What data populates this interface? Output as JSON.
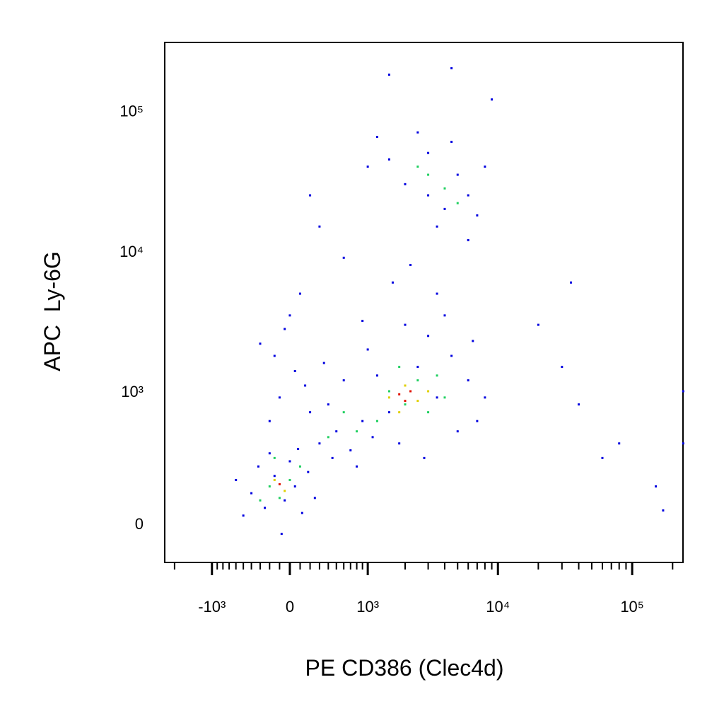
{
  "chart_data": {
    "type": "scatter",
    "xlabel": "PE CD386 (Clec4d)",
    "ylabel": "APC  Ly-6G",
    "xscale": "biexponential",
    "yscale": "biexponential",
    "xlim": [
      -2380,
      239000
    ],
    "ylim": [
      -159,
      305000
    ],
    "xticks": [
      {
        "value": -1000,
        "label": "-10³"
      },
      0,
      {
        "value": 1000,
        "label": "10³"
      },
      {
        "value": 10000,
        "label": "10⁴"
      },
      {
        "value": 100000,
        "label": "10⁵"
      }
    ],
    "xminor_ticks": [
      -2000,
      -900,
      -800,
      -700,
      -600,
      -500,
      -400,
      -300,
      -200,
      -100,
      100,
      200,
      300,
      400,
      500,
      600,
      700,
      800,
      900,
      2000,
      3000,
      4000,
      5000,
      6000,
      7000,
      8000,
      9000,
      20000,
      30000,
      40000,
      50000,
      60000,
      70000,
      80000,
      90000,
      200000
    ],
    "yticks": [
      0,
      {
        "value": 1000,
        "label": "10³"
      },
      {
        "value": 10000,
        "label": "10⁴"
      },
      {
        "value": 100000,
        "label": "10⁵"
      }
    ],
    "series": [
      {
        "color": "#0000e0",
        "x": [
          -400,
          -250,
          -150,
          -50,
          50,
          120,
          -320,
          -200,
          0,
          180,
          -500,
          -80,
          250,
          -600,
          80,
          -200,
          -100,
          50,
          -300,
          0,
          100,
          -150,
          200,
          -50,
          150,
          300,
          500,
          400,
          700,
          900,
          600,
          350,
          800,
          1100,
          450,
          1500,
          2500,
          3500,
          1000,
          4500,
          6000,
          2000,
          3000,
          7000,
          1200,
          5000,
          8000,
          1800,
          4000,
          2800,
          3500,
          1600,
          6500,
          900,
          2200,
          2000,
          3000,
          4000,
          5000,
          6000,
          3500,
          1500,
          7000,
          2500,
          4500,
          1000,
          6000,
          3000,
          8000,
          1200,
          300,
          600,
          200,
          1500,
          4500,
          9000,
          20000,
          30000,
          40000,
          60000,
          80000,
          150000,
          170000,
          240000,
          240000,
          35000
        ],
        "values": [
          120,
          60,
          200,
          90,
          150,
          40,
          250,
          330,
          280,
          220,
          30,
          -40,
          100,
          180,
          360,
          600,
          900,
          1400,
          2200,
          3500,
          5000,
          1800,
          700,
          2800,
          1100,
          400,
          500,
          800,
          350,
          600,
          1200,
          1600,
          250,
          450,
          300,
          700,
          1500,
          900,
          2000,
          1800,
          1200,
          3000,
          2500,
          600,
          1300,
          500,
          900,
          400,
          3500,
          300,
          5000,
          6000,
          2300,
          3200,
          8000,
          30000,
          50000,
          20000,
          35000,
          25000,
          15000,
          45000,
          18000,
          70000,
          60000,
          40000,
          12000,
          25000,
          40000,
          65000,
          15000,
          9000,
          25000,
          180000,
          200000,
          120000,
          3000,
          1500,
          800,
          300,
          400,
          150,
          50,
          1000,
          400,
          6000
        ]
      },
      {
        "color": "#20d060",
        "x": [
          -200,
          -100,
          0,
          -300,
          100,
          -150,
          400,
          600,
          800,
          1500,
          2000,
          2500,
          3000,
          1200,
          1800,
          3500,
          4000,
          3000,
          4000,
          2500,
          5000
        ],
        "values": [
          150,
          100,
          180,
          90,
          250,
          300,
          450,
          700,
          500,
          1000,
          800,
          1200,
          700,
          600,
          1500,
          1300,
          900,
          35000,
          28000,
          40000,
          22000
        ]
      },
      {
        "color": "#e0d000",
        "x": [
          -150,
          -50,
          1500,
          2000,
          2500,
          1800,
          3000
        ],
        "values": [
          180,
          130,
          900,
          1100,
          850,
          700,
          1000
        ]
      },
      {
        "color": "#e01000",
        "x": [
          -100,
          1800,
          2200,
          2000
        ],
        "values": [
          160,
          950,
          1000,
          850
        ]
      }
    ]
  }
}
